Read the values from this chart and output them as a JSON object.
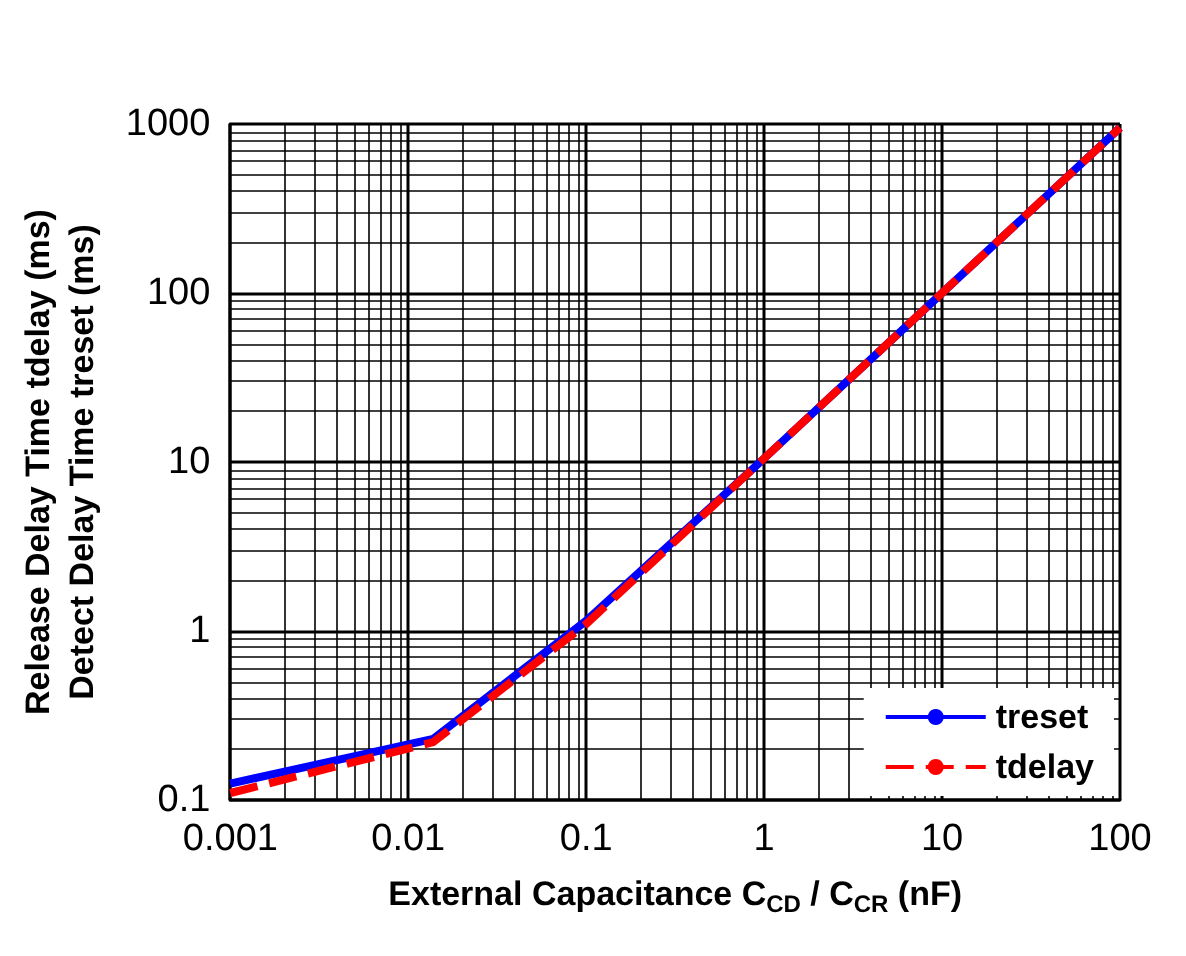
{
  "chart_data": {
    "type": "line",
    "xlabel": "External Capacitance C$_{CD}$ / C$_{CR}$ (nF)",
    "ylabel": "Release Delay Time tdelay (ms)\nDetect Delay Time treset (ms)",
    "x": [
      0.001,
      0.0138,
      0.1,
      1,
      10,
      100
    ],
    "series": [
      {
        "name": "treset",
        "color": "#0000ff",
        "line_style": "solid",
        "values": [
          0.125,
          0.23,
          1.15,
          10.5,
          100,
          950
        ]
      },
      {
        "name": "tdelay",
        "color": "#ff0000",
        "line_style": "dashed",
        "values": [
          0.11,
          0.22,
          1.1,
          10.5,
          100,
          950
        ]
      }
    ],
    "log": "xy",
    "xlim": [
      0.001,
      100
    ],
    "ylim": [
      0.1,
      1000
    ],
    "xticks": [
      0.001,
      0.01,
      0.1,
      1,
      10,
      100
    ],
    "yticks": [
      0.1,
      1,
      10,
      100,
      1000
    ],
    "grid": true,
    "legend": "bottom right",
    "marker": "none"
  }
}
